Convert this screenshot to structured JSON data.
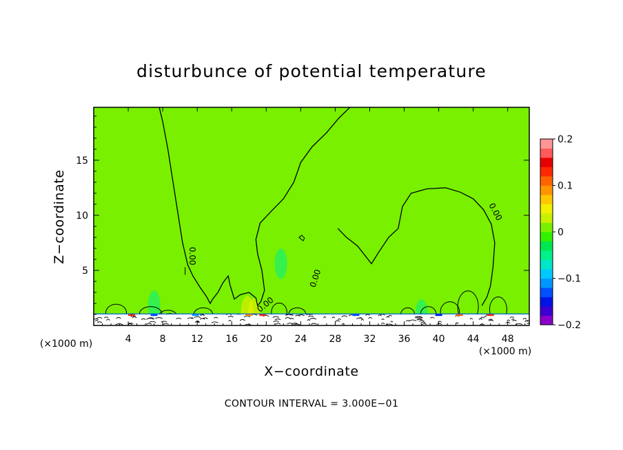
{
  "chart_data": {
    "type": "heatmap",
    "title": "disturbunce of potential temperature",
    "xlabel": "X−coordinate",
    "ylabel": "Z−coordinate",
    "x_unit_left": "(×1000 m)",
    "x_unit_right": "(×1000 m)",
    "xlim": [
      0,
      50.5
    ],
    "ylim": [
      0,
      19.8
    ],
    "x_ticks": [
      4,
      8,
      12,
      16,
      20,
      24,
      28,
      32,
      36,
      40,
      44,
      48
    ],
    "y_ticks": [
      5,
      10,
      15
    ],
    "background_value": 0,
    "contour_interval": 0.3,
    "contour_interval_text": "CONTOUR INTERVAL = 3.000E−01",
    "contour_labels": [
      "0.00",
      "0.00",
      "0.00",
      "0.00"
    ],
    "colorbar": {
      "range": [
        -0.2,
        0.2
      ],
      "tick_labels": [
        "0.2",
        "0.1",
        "0",
        "−0.1",
        "−0.2"
      ],
      "tick_values": [
        0.2,
        0.1,
        0,
        -0.1,
        -0.2
      ],
      "colors": [
        "#8b00c8",
        "#3c00d2",
        "#0014e6",
        "#0050ff",
        "#0096ff",
        "#00c8ff",
        "#00e6c8",
        "#00f08c",
        "#00e650",
        "#32f000",
        "#78f000",
        "#c8f000",
        "#f0f000",
        "#ffc800",
        "#ff9600",
        "#ff6400",
        "#ff2800",
        "#e60000",
        "#ff5a5a",
        "#ff9696"
      ]
    },
    "zero_contour": [
      [
        7.6,
        19.8
      ],
      [
        8.0,
        18.5
      ],
      [
        8.6,
        16.0
      ],
      [
        9.2,
        13.0
      ],
      [
        9.8,
        10.0
      ],
      [
        10.3,
        7.5
      ],
      [
        10.9,
        5.5
      ],
      [
        11.5,
        4.5
      ],
      [
        12.3,
        3.5
      ],
      [
        13.1,
        2.6
      ],
      [
        13.5,
        2.0
      ],
      [
        13.8,
        2.4
      ],
      [
        14.4,
        3.0
      ],
      [
        15.0,
        3.9
      ],
      [
        15.6,
        4.5
      ],
      [
        15.8,
        3.7
      ],
      [
        16.3,
        2.4
      ],
      [
        17.0,
        2.8
      ],
      [
        18.0,
        3.0
      ],
      [
        18.8,
        2.5
      ],
      [
        19.0,
        1.8
      ],
      [
        19.4,
        2.2
      ],
      [
        19.8,
        3.2
      ],
      [
        19.5,
        5.0
      ],
      [
        19.0,
        6.5
      ],
      [
        18.8,
        7.8
      ],
      [
        19.3,
        9.3
      ],
      [
        20.5,
        10.3
      ],
      [
        22.0,
        11.5
      ],
      [
        23.2,
        13.0
      ],
      [
        24.0,
        14.8
      ],
      [
        25.3,
        16.2
      ],
      [
        27.0,
        17.5
      ],
      [
        28.4,
        18.8
      ],
      [
        29.7,
        19.8
      ]
    ],
    "zero_contour_2": [
      [
        28.3,
        8.8
      ],
      [
        29.3,
        8.0
      ],
      [
        30.6,
        7.2
      ],
      [
        31.8,
        6.0
      ],
      [
        32.2,
        5.6
      ],
      [
        33.0,
        6.6
      ],
      [
        34.2,
        8.0
      ],
      [
        35.3,
        8.8
      ],
      [
        35.8,
        10.8
      ],
      [
        36.8,
        12.0
      ],
      [
        38.6,
        12.4
      ],
      [
        40.8,
        12.5
      ],
      [
        42.5,
        12.1
      ],
      [
        44.0,
        11.5
      ],
      [
        45.2,
        10.5
      ],
      [
        46.1,
        9.2
      ],
      [
        46.5,
        7.5
      ],
      [
        46.3,
        5.3
      ],
      [
        46.0,
        3.6
      ],
      [
        45.6,
        2.6
      ],
      [
        45.0,
        1.8
      ]
    ],
    "warm_anomalies": [
      {
        "x": 17.8,
        "z": 1.3,
        "value": 0.04
      },
      {
        "x": 18.6,
        "z": 1.1,
        "value": 0.05
      }
    ],
    "cold_anomalies": [
      {
        "x": 7.0,
        "z": 1.8,
        "value": -0.05
      },
      {
        "x": 21.7,
        "z": 5.6,
        "value": -0.04
      },
      {
        "x": 38.0,
        "z": 1.0,
        "value": -0.06
      }
    ]
  }
}
